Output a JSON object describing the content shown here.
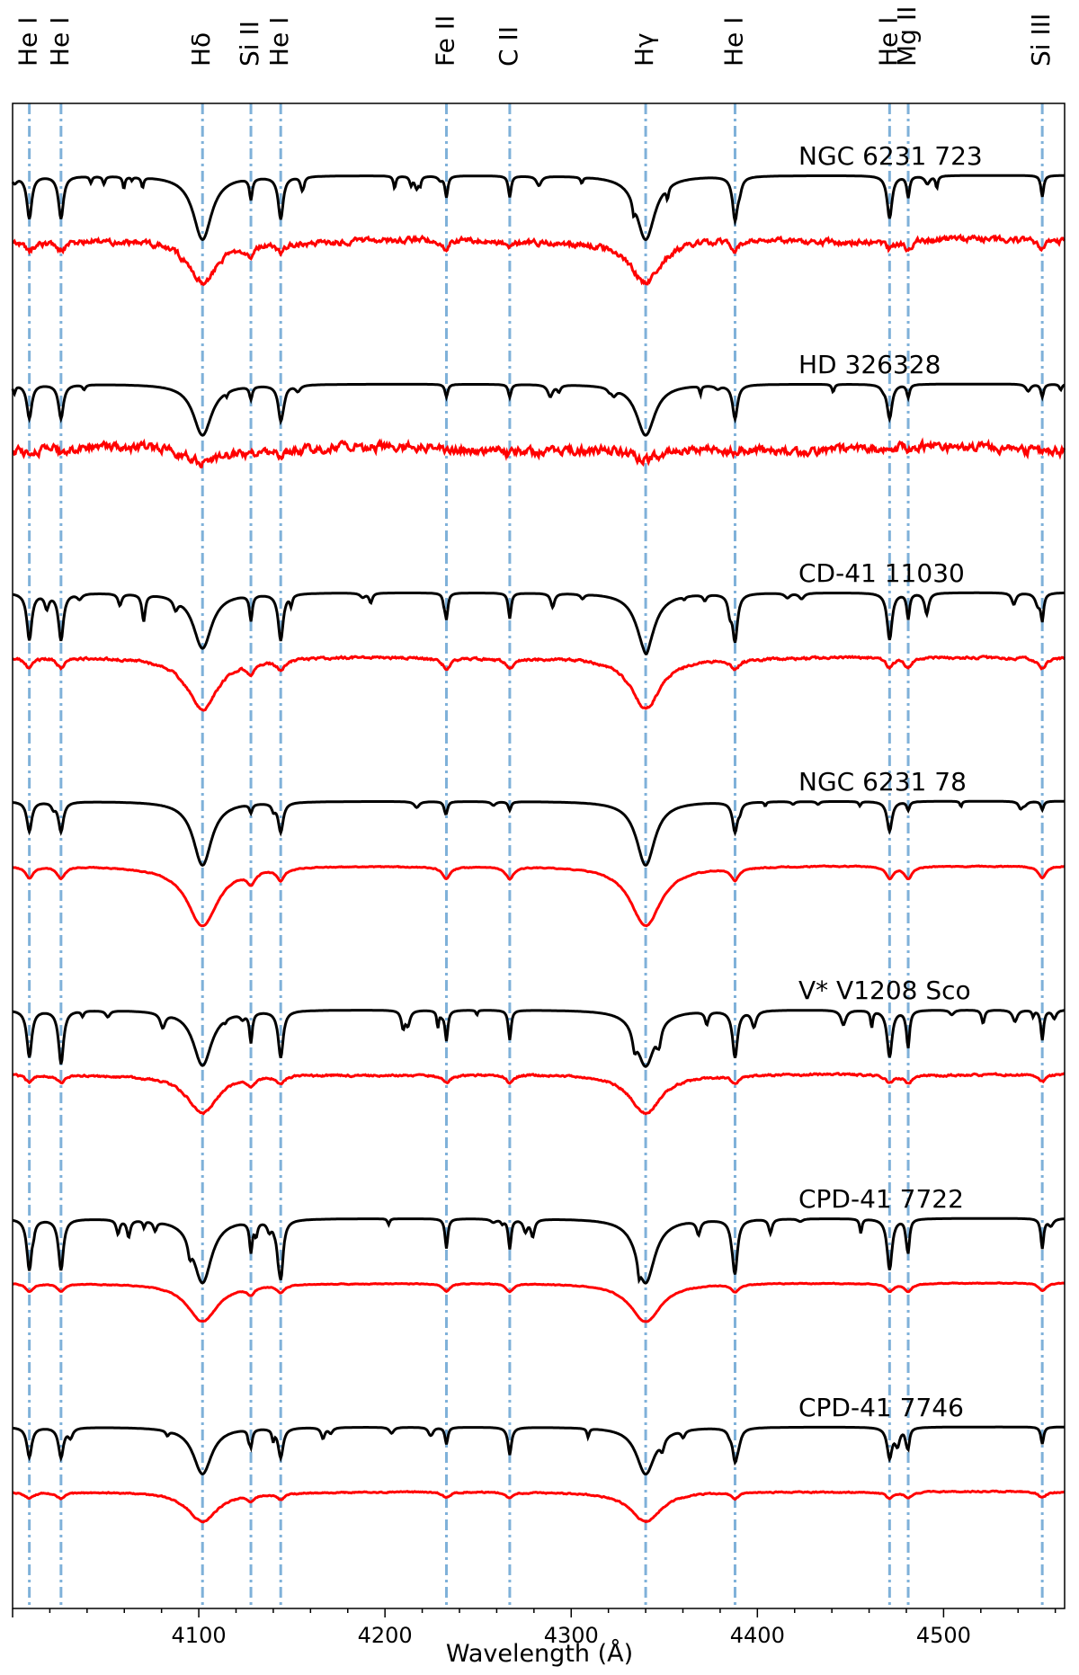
{
  "chart_data": {
    "type": "line",
    "xlabel": "Wavelength (Å)",
    "ylabel": "",
    "xlim": [
      4000,
      4565
    ],
    "x_ticks": [
      4100,
      4200,
      4300,
      4400,
      4500
    ],
    "x_tick_labels": [
      "4100",
      "4200",
      "4300",
      "4400",
      "4500"
    ],
    "grid": false,
    "spectral_lines": [
      {
        "name": "He I",
        "wavelength": 4009
      },
      {
        "name": "He I",
        "wavelength": 4026
      },
      {
        "name": "Hδ",
        "wavelength": 4102
      },
      {
        "name": "Si II",
        "wavelength": 4128
      },
      {
        "name": "He I",
        "wavelength": 4144
      },
      {
        "name": "Fe II",
        "wavelength": 4233
      },
      {
        "name": "C II",
        "wavelength": 4267
      },
      {
        "name": "Hγ",
        "wavelength": 4340
      },
      {
        "name": "He I",
        "wavelength": 4388
      },
      {
        "name": "He I",
        "wavelength": 4471
      },
      {
        "name": "Mg II",
        "wavelength": 4481
      },
      {
        "name": "Si III",
        "wavelength": 4553
      }
    ],
    "stars": [
      {
        "name": "NGC 6231 723",
        "model_depths": {
          "H": 0.75,
          "He": 0.5,
          "metal": 0.25
        },
        "observed_depth": 0.5,
        "noise": 0.35
      },
      {
        "name": "HD 326328",
        "model_depths": {
          "H": 0.6,
          "He": 0.4,
          "metal": 0.15
        },
        "observed_depth": 0.15,
        "noise": 0.55
      },
      {
        "name": "CD-41 11030",
        "model_depths": {
          "H": 0.65,
          "He": 0.55,
          "metal": 0.3
        },
        "observed_depth": 0.6,
        "noise": 0.15
      },
      {
        "name": "NGC 6231 78",
        "model_depths": {
          "H": 0.75,
          "He": 0.35,
          "metal": 0.1
        },
        "observed_depth": 0.7,
        "noise": 0.06
      },
      {
        "name": "V* V1208 Sco",
        "model_depths": {
          "H": 0.65,
          "He": 0.55,
          "metal": 0.35
        },
        "observed_depth": 0.45,
        "noise": 0.12
      },
      {
        "name": "CPD-41 7722",
        "model_depths": {
          "H": 0.75,
          "He": 0.6,
          "metal": 0.35
        },
        "observed_depth": 0.45,
        "noise": 0.05
      },
      {
        "name": "CPD-41 7746",
        "model_depths": {
          "H": 0.55,
          "He": 0.35,
          "metal": 0.2
        },
        "observed_depth": 0.35,
        "noise": 0.08
      }
    ],
    "colors": {
      "model": "#000000",
      "observed": "#ff0000",
      "line_markers": "#7fb1d9"
    }
  }
}
